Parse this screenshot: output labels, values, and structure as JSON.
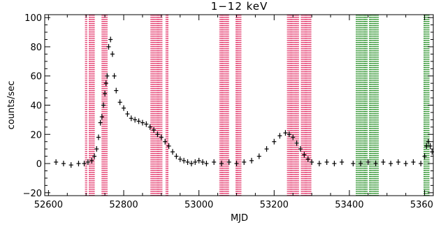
{
  "chart_data": {
    "type": "scatter",
    "title": "1−12 keV",
    "xlabel": "MJD",
    "ylabel": "counts/sec",
    "xlim": [
      52590,
      53625
    ],
    "ylim": [
      -22,
      102
    ],
    "xticks": [
      52600,
      52800,
      53000,
      53200,
      53400,
      53600
    ],
    "yticks": [
      -20,
      0,
      20,
      40,
      60,
      80,
      100
    ],
    "xtick_labels": [
      "52600",
      "52800",
      "53000",
      "53200",
      "53400",
      "53600"
    ],
    "ytick_labels": [
      "−20",
      "0",
      "20",
      "40",
      "60",
      "80",
      "100"
    ],
    "grid": false,
    "colors": {
      "data": "#000000",
      "red_bands": "#e0205a",
      "green_bands": "#1a8a1a",
      "axes": "#000000"
    },
    "series": [
      {
        "marker": "plus-with-errorbars",
        "x": [
          52620,
          52640,
          52660,
          52680,
          52695,
          52705,
          52715,
          52722,
          52728,
          52733,
          52738,
          52742,
          52746,
          52750,
          52753,
          52756,
          52760,
          52765,
          52770,
          52775,
          52780,
          52790,
          52800,
          52810,
          52820,
          52830,
          52840,
          52850,
          52860,
          52870,
          52880,
          52890,
          52900,
          52910,
          52920,
          52930,
          52940,
          52950,
          52960,
          52970,
          52980,
          52990,
          53000,
          53010,
          53020,
          53040,
          53060,
          53080,
          53100,
          53120,
          53140,
          53160,
          53180,
          53200,
          53215,
          53230,
          53240,
          53250,
          53260,
          53270,
          53280,
          53290,
          53300,
          53320,
          53340,
          53360,
          53380,
          53410,
          53430,
          53450,
          53470,
          53490,
          53510,
          53530,
          53550,
          53570,
          53590,
          53600,
          53605,
          53610,
          53615,
          53620
        ],
        "y": [
          1,
          0,
          -1,
          0,
          0,
          1,
          2,
          5,
          10,
          18,
          28,
          32,
          40,
          48,
          55,
          60,
          80,
          85,
          75,
          60,
          50,
          42,
          38,
          34,
          31,
          30,
          29,
          28,
          27,
          25,
          23,
          20,
          18,
          15,
          12,
          8,
          5,
          3,
          2,
          1,
          0,
          1,
          2,
          1,
          0,
          1,
          0,
          1,
          0,
          1,
          2,
          5,
          10,
          15,
          19,
          21,
          20,
          18,
          14,
          10,
          6,
          3,
          1,
          0,
          1,
          0,
          1,
          0,
          0,
          1,
          0,
          1,
          0,
          1,
          0,
          1,
          0,
          5,
          12,
          15,
          12,
          8
        ]
      }
    ],
    "red_intervals": [
      [
        52698,
        52702
      ],
      [
        52708,
        52722
      ],
      [
        52742,
        52756
      ],
      [
        52872,
        52902
      ],
      [
        52912,
        52918
      ],
      [
        53055,
        53080
      ],
      [
        53098,
        53112
      ],
      [
        53235,
        53265
      ],
      [
        53272,
        53298
      ]
    ],
    "green_intervals": [
      [
        53418,
        53448
      ],
      [
        53453,
        53478
      ],
      [
        53598,
        53612
      ]
    ]
  }
}
